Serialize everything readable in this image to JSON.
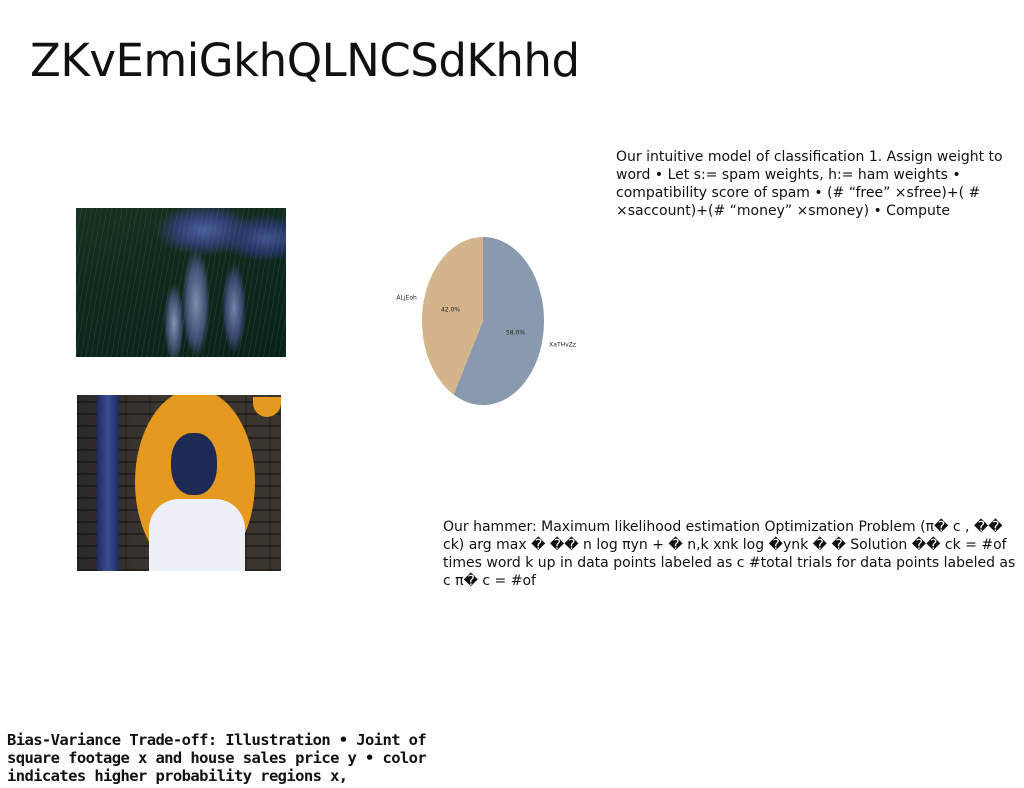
{
  "slide": {
    "title": "ZKvEmiGkhQLNCSdKhhd"
  },
  "text_blocks": {
    "classification": "Our intuitive model of classification 1. Assign weight to word • Let s:= spam weights, h:= ham weights • compatibility score of spam • (# “free” ×sfree)+( # ×saccount)+(# “money” ×smoney) • Compute",
    "hammer": "Our hammer: Maximum likelihood estimation Optimization Problem (π� c , �� ck) arg max � �� n log πyn + � n,k xnk log �ynk � � Solution �� ck = #of times word k up in data points labeled as c #total trials for data points labeled as c π� c = #of",
    "bias_variance": "Bias-Variance Trade-off: Illustration • Joint of square footage x and house sales price y • color indicates higher probability regions x,"
  },
  "images": [
    {
      "name": "photo-mushrooms",
      "description_icon": "image-icon"
    },
    {
      "name": "photo-portrait",
      "description_icon": "image-icon"
    }
  ],
  "chart_data": {
    "type": "pie",
    "slices": [
      {
        "label": "XaTHvZz",
        "value": 58.0,
        "value_label": "58.0%",
        "color": "#8a9aae"
      },
      {
        "label": "ALjEoh",
        "value": 42.0,
        "value_label": "42.0%",
        "color": "#d4b48a"
      }
    ],
    "start_angle_deg": 90,
    "direction": "clockwise"
  }
}
